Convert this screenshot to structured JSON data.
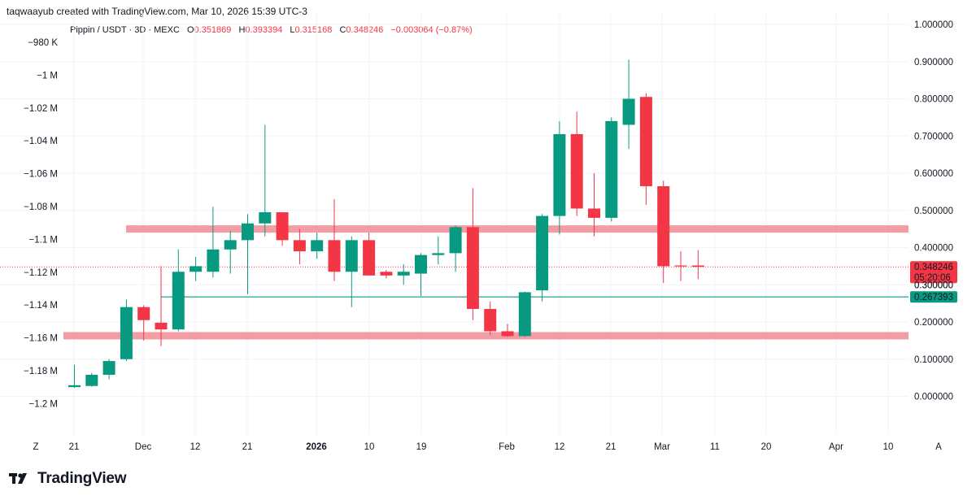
{
  "header": {
    "note": "taqwaayub created with TradingView.com, Mar 10, 2026 15:39 UTC-3"
  },
  "legend": {
    "symbol": "Pippin / USDT · 3D · MEXC",
    "o_label": "O",
    "o": "0.351869",
    "h_label": "H",
    "h": "0.393394",
    "l_label": "L",
    "l": "0.315168",
    "c_label": "C",
    "c": "0.348246",
    "change": "−0.003064 (−0.87%)"
  },
  "colors": {
    "up": "#089981",
    "down": "#f23645",
    "zone": "#f08c94",
    "support": "#089981",
    "grid": "#f0f3fa"
  },
  "footer": {
    "brand": "TradingView"
  },
  "chart_data": {
    "type": "candlestick",
    "title": "Pippin / USDT · 3D · MEXC",
    "right_axis": {
      "ylim": [
        -0.06,
        1.0
      ],
      "ticks": [
        "1.000000",
        "0.900000",
        "0.800000",
        "0.700000",
        "0.600000",
        "0.500000",
        "0.400000",
        "0.300000",
        "0.200000",
        "0.100000",
        "0.000000"
      ]
    },
    "left_axis": {
      "ticks": [
        "−980 K",
        "−1 M",
        "−1.02 M",
        "−1.04 M",
        "−1.06 M",
        "−1.08 M",
        "−1.1 M",
        "−1.12 M",
        "−1.14 M",
        "−1.16 M",
        "−1.18 M",
        "−1.2 M"
      ]
    },
    "x_ticks": [
      "Z",
      "21",
      "Dec",
      "12",
      "21",
      "2026",
      "10",
      "19",
      "Feb",
      "12",
      "21",
      "Mar",
      "11",
      "20",
      "Apr",
      "10",
      "A"
    ],
    "price_labels": [
      {
        "value": 0.348246,
        "text": "0.348246",
        "sub": "05:20:06",
        "color": "#f23645"
      },
      {
        "value": 0.267393,
        "text": "0.267393",
        "color": "#089981"
      }
    ],
    "overlay_value_text": "0.300000",
    "horizontal_lines": [
      {
        "kind": "zone",
        "value": 0.45
      },
      {
        "kind": "zone",
        "value": 0.163
      },
      {
        "kind": "support",
        "value": 0.267393
      },
      {
        "kind": "last_price",
        "value": 0.348246
      }
    ],
    "candles": [
      {
        "o": 0.025,
        "h": 0.085,
        "l": 0.023,
        "c": 0.03
      },
      {
        "o": 0.028,
        "h": 0.063,
        "l": 0.026,
        "c": 0.058
      },
      {
        "o": 0.058,
        "h": 0.1,
        "l": 0.046,
        "c": 0.095
      },
      {
        "o": 0.1,
        "h": 0.26,
        "l": 0.095,
        "c": 0.24
      },
      {
        "o": 0.24,
        "h": 0.245,
        "l": 0.15,
        "c": 0.205
      },
      {
        "o": 0.198,
        "h": 0.35,
        "l": 0.135,
        "c": 0.18
      },
      {
        "o": 0.18,
        "h": 0.395,
        "l": 0.175,
        "c": 0.335
      },
      {
        "o": 0.335,
        "h": 0.375,
        "l": 0.31,
        "c": 0.35
      },
      {
        "o": 0.335,
        "h": 0.51,
        "l": 0.32,
        "c": 0.395
      },
      {
        "o": 0.395,
        "h": 0.445,
        "l": 0.33,
        "c": 0.42
      },
      {
        "o": 0.42,
        "h": 0.49,
        "l": 0.275,
        "c": 0.465
      },
      {
        "o": 0.465,
        "h": 0.73,
        "l": 0.43,
        "c": 0.495
      },
      {
        "o": 0.495,
        "h": 0.495,
        "l": 0.405,
        "c": 0.42
      },
      {
        "o": 0.42,
        "h": 0.45,
        "l": 0.355,
        "c": 0.39
      },
      {
        "o": 0.39,
        "h": 0.44,
        "l": 0.37,
        "c": 0.42
      },
      {
        "o": 0.42,
        "h": 0.53,
        "l": 0.31,
        "c": 0.335
      },
      {
        "o": 0.335,
        "h": 0.43,
        "l": 0.24,
        "c": 0.42
      },
      {
        "o": 0.42,
        "h": 0.44,
        "l": 0.33,
        "c": 0.325
      },
      {
        "o": 0.335,
        "h": 0.34,
        "l": 0.317,
        "c": 0.325
      },
      {
        "o": 0.325,
        "h": 0.355,
        "l": 0.3,
        "c": 0.335
      },
      {
        "o": 0.33,
        "h": 0.385,
        "l": 0.27,
        "c": 0.38
      },
      {
        "o": 0.38,
        "h": 0.43,
        "l": 0.355,
        "c": 0.385
      },
      {
        "o": 0.385,
        "h": 0.46,
        "l": 0.335,
        "c": 0.455
      },
      {
        "o": 0.455,
        "h": 0.56,
        "l": 0.205,
        "c": 0.235
      },
      {
        "o": 0.235,
        "h": 0.255,
        "l": 0.165,
        "c": 0.175
      },
      {
        "o": 0.175,
        "h": 0.195,
        "l": 0.16,
        "c": 0.162
      },
      {
        "o": 0.162,
        "h": 0.282,
        "l": 0.16,
        "c": 0.28
      },
      {
        "o": 0.285,
        "h": 0.49,
        "l": 0.255,
        "c": 0.485
      },
      {
        "o": 0.485,
        "h": 0.74,
        "l": 0.435,
        "c": 0.705
      },
      {
        "o": 0.705,
        "h": 0.765,
        "l": 0.485,
        "c": 0.505
      },
      {
        "o": 0.505,
        "h": 0.6,
        "l": 0.43,
        "c": 0.48
      },
      {
        "o": 0.48,
        "h": 0.75,
        "l": 0.47,
        "c": 0.74
      },
      {
        "o": 0.73,
        "h": 0.905,
        "l": 0.665,
        "c": 0.8
      },
      {
        "o": 0.805,
        "h": 0.815,
        "l": 0.515,
        "c": 0.565
      },
      {
        "o": 0.565,
        "h": 0.58,
        "l": 0.305,
        "c": 0.35
      },
      {
        "o": 0.352,
        "h": 0.39,
        "l": 0.31,
        "c": 0.35
      },
      {
        "o": 0.351869,
        "h": 0.393394,
        "l": 0.315168,
        "c": 0.348246
      }
    ]
  }
}
